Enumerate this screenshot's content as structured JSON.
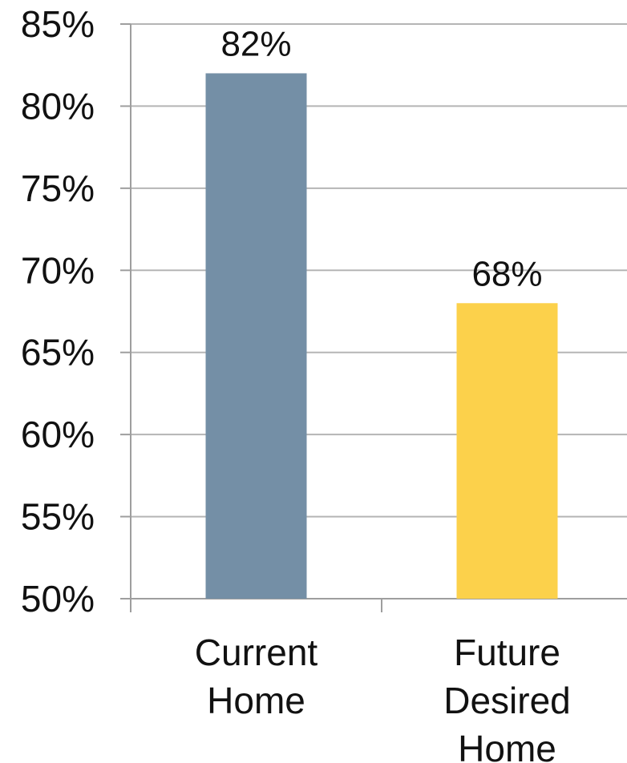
{
  "chart_data": {
    "type": "bar",
    "title": "",
    "xlabel": "",
    "ylabel": "",
    "categories": [
      "Current\nHome",
      "Future\nDesired\nHome"
    ],
    "values": [
      82,
      68
    ],
    "data_labels": [
      "82%",
      "68%"
    ],
    "colors": [
      "#748fa6",
      "#fcd14b"
    ],
    "ylim": [
      50,
      85
    ],
    "ytick_step": 5,
    "ytick_labels": [
      "50%",
      "55%",
      "60%",
      "65%",
      "70%",
      "75%",
      "80%",
      "85%"
    ],
    "grid": true,
    "legend": "none"
  }
}
